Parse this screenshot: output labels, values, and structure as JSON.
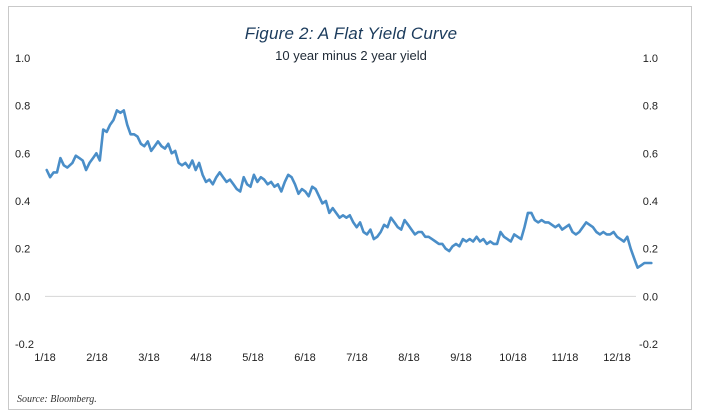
{
  "chart_data": {
    "type": "line",
    "title": "Figure 2:  A Flat Yield Curve",
    "subtitle": "10 year minus 2 year yield",
    "xlabel": "",
    "ylabel": "",
    "ylim": [
      -0.2,
      1.0
    ],
    "y_ticks": [
      "1.0",
      "0.8",
      "0.6",
      "0.4",
      "0.2",
      "0.0",
      "-0.2"
    ],
    "x_ticks": [
      "1/18",
      "2/18",
      "3/18",
      "4/18",
      "5/18",
      "6/18",
      "7/18",
      "8/18",
      "9/18",
      "10/18",
      "11/18",
      "12/18"
    ],
    "grid": false,
    "zero_line": true,
    "line_color": "#4a8ec8",
    "series": [
      {
        "x": [
          "2018-01-02",
          "2018-01-04",
          "2018-01-06",
          "2018-01-08",
          "2018-01-10",
          "2018-01-12",
          "2018-01-14",
          "2018-01-17",
          "2018-01-19",
          "2018-01-21",
          "2018-01-23",
          "2018-01-25",
          "2018-01-27",
          "2018-01-29",
          "2018-01-31",
          "2018-02-02",
          "2018-02-04",
          "2018-02-06",
          "2018-02-08",
          "2018-02-10",
          "2018-02-12",
          "2018-02-14",
          "2018-02-16",
          "2018-02-18",
          "2018-02-20",
          "2018-02-22",
          "2018-02-24",
          "2018-02-26",
          "2018-02-28",
          "2018-03-02",
          "2018-03-04",
          "2018-03-06",
          "2018-03-08",
          "2018-03-10",
          "2018-03-12",
          "2018-03-14",
          "2018-03-16",
          "2018-03-18",
          "2018-03-20",
          "2018-03-22",
          "2018-03-24",
          "2018-03-26",
          "2018-03-28",
          "2018-03-30",
          "2018-04-01",
          "2018-04-03",
          "2018-04-05",
          "2018-04-07",
          "2018-04-09",
          "2018-04-11",
          "2018-04-13",
          "2018-04-15",
          "2018-04-17",
          "2018-04-19",
          "2018-04-21",
          "2018-04-23",
          "2018-04-25",
          "2018-04-27",
          "2018-04-29",
          "2018-05-01",
          "2018-05-03",
          "2018-05-05",
          "2018-05-07",
          "2018-05-09",
          "2018-05-11",
          "2018-05-13",
          "2018-05-15",
          "2018-05-17",
          "2018-05-19",
          "2018-05-21",
          "2018-05-23",
          "2018-05-25",
          "2018-05-27",
          "2018-05-29",
          "2018-05-31",
          "2018-06-02",
          "2018-06-04",
          "2018-06-06",
          "2018-06-08",
          "2018-06-10",
          "2018-06-12",
          "2018-06-14",
          "2018-06-16",
          "2018-06-18",
          "2018-06-20",
          "2018-06-22",
          "2018-06-24",
          "2018-06-26",
          "2018-06-28",
          "2018-06-30",
          "2018-07-02",
          "2018-07-04",
          "2018-07-06",
          "2018-07-08",
          "2018-07-10",
          "2018-07-12",
          "2018-07-14",
          "2018-07-16",
          "2018-07-18",
          "2018-07-20",
          "2018-07-22",
          "2018-07-24",
          "2018-07-26",
          "2018-07-28",
          "2018-07-30",
          "2018-08-01",
          "2018-08-03",
          "2018-08-05",
          "2018-08-07",
          "2018-08-09",
          "2018-08-11",
          "2018-08-13",
          "2018-08-15",
          "2018-08-17",
          "2018-08-19",
          "2018-08-21",
          "2018-08-23",
          "2018-08-25",
          "2018-08-27",
          "2018-08-29",
          "2018-08-31",
          "2018-09-02",
          "2018-09-04",
          "2018-09-06",
          "2018-09-08",
          "2018-09-10",
          "2018-09-12",
          "2018-09-14",
          "2018-09-16",
          "2018-09-18",
          "2018-09-20",
          "2018-09-22",
          "2018-09-24",
          "2018-09-26",
          "2018-09-28",
          "2018-09-30",
          "2018-10-02",
          "2018-10-04",
          "2018-10-06",
          "2018-10-08",
          "2018-10-10",
          "2018-10-12",
          "2018-10-14",
          "2018-10-16",
          "2018-10-18",
          "2018-10-20",
          "2018-10-22",
          "2018-10-24",
          "2018-10-26",
          "2018-10-28",
          "2018-10-30",
          "2018-11-01",
          "2018-11-03",
          "2018-11-05",
          "2018-11-07",
          "2018-11-09",
          "2018-11-11",
          "2018-11-13",
          "2018-11-15",
          "2018-11-17",
          "2018-11-19",
          "2018-11-21",
          "2018-11-23",
          "2018-11-25",
          "2018-11-27",
          "2018-11-29",
          "2018-12-01",
          "2018-12-03",
          "2018-12-05",
          "2018-12-07",
          "2018-12-09",
          "2018-12-11",
          "2018-12-13",
          "2018-12-15",
          "2018-12-17",
          "2018-12-19",
          "2018-12-21"
        ],
        "values": [
          0.53,
          0.5,
          0.52,
          0.52,
          0.58,
          0.55,
          0.54,
          0.56,
          0.59,
          0.58,
          0.57,
          0.53,
          0.56,
          0.58,
          0.6,
          0.57,
          0.7,
          0.69,
          0.72,
          0.74,
          0.78,
          0.77,
          0.78,
          0.72,
          0.68,
          0.68,
          0.67,
          0.64,
          0.63,
          0.65,
          0.61,
          0.63,
          0.65,
          0.63,
          0.62,
          0.64,
          0.6,
          0.61,
          0.56,
          0.55,
          0.56,
          0.54,
          0.57,
          0.53,
          0.56,
          0.51,
          0.48,
          0.49,
          0.47,
          0.5,
          0.52,
          0.5,
          0.48,
          0.49,
          0.47,
          0.45,
          0.44,
          0.5,
          0.47,
          0.46,
          0.51,
          0.48,
          0.5,
          0.49,
          0.47,
          0.48,
          0.46,
          0.47,
          0.44,
          0.48,
          0.51,
          0.5,
          0.47,
          0.43,
          0.45,
          0.44,
          0.42,
          0.46,
          0.45,
          0.42,
          0.39,
          0.4,
          0.35,
          0.37,
          0.35,
          0.33,
          0.34,
          0.33,
          0.34,
          0.31,
          0.29,
          0.31,
          0.27,
          0.26,
          0.28,
          0.24,
          0.25,
          0.27,
          0.3,
          0.29,
          0.33,
          0.31,
          0.29,
          0.28,
          0.32,
          0.3,
          0.28,
          0.26,
          0.27,
          0.27,
          0.25,
          0.25,
          0.24,
          0.23,
          0.22,
          0.22,
          0.2,
          0.19,
          0.21,
          0.22,
          0.21,
          0.24,
          0.23,
          0.24,
          0.23,
          0.25,
          0.23,
          0.24,
          0.22,
          0.23,
          0.22,
          0.22,
          0.27,
          0.25,
          0.24,
          0.23,
          0.26,
          0.25,
          0.24,
          0.29,
          0.35,
          0.35,
          0.32,
          0.31,
          0.32,
          0.31,
          0.31,
          0.3,
          0.29,
          0.3,
          0.28,
          0.29,
          0.3,
          0.27,
          0.26,
          0.27,
          0.29,
          0.31,
          0.3,
          0.29,
          0.27,
          0.26,
          0.27,
          0.26,
          0.26,
          0.27,
          0.25,
          0.24,
          0.23,
          0.25,
          0.2,
          0.16,
          0.12,
          0.13,
          0.14,
          0.14,
          0.14
        ]
      }
    ]
  },
  "source": "Source: Bloomberg."
}
